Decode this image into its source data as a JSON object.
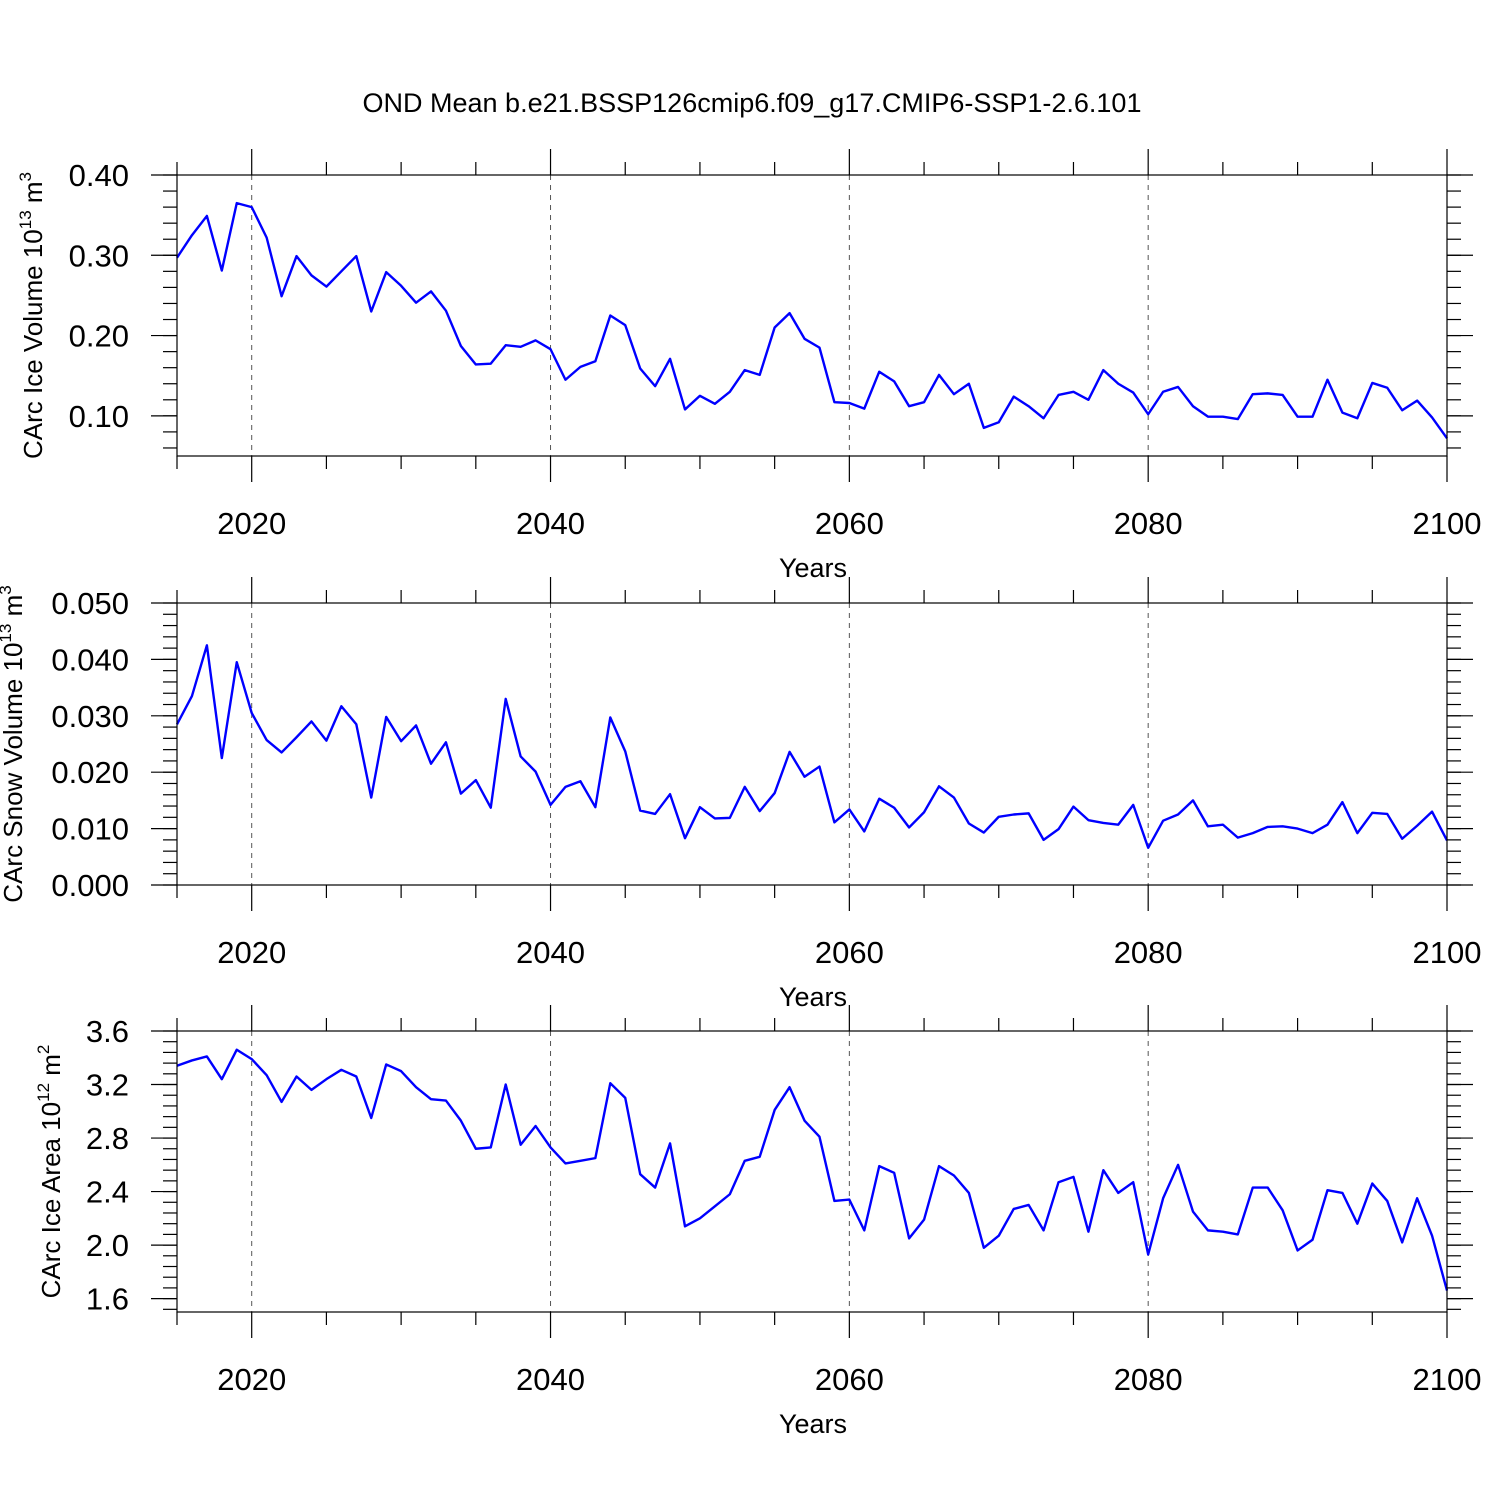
{
  "figure_title": "OND Mean b.e21.BSSP126cmip6.f09_g17.CMIP6-SSP1-2.6.101",
  "colors": {
    "series": "#0000ff",
    "axes": "#000000",
    "grid": "#555555"
  },
  "chart_data": [
    {
      "type": "line",
      "xlabel": "Years",
      "ylabel": "CArc Ice Volume 10",
      "ylabel_sup": "13",
      "ylabel_unit": "m",
      "ylabel_unit_sup": "3",
      "xlim": [
        2015,
        2100
      ],
      "ylim": [
        0.05,
        0.4
      ],
      "xticks": [
        2020,
        2040,
        2060,
        2080,
        2100
      ],
      "xtick_labels": [
        "2020",
        "2040",
        "2060",
        "2080",
        "2100"
      ],
      "yticks": [
        0.1,
        0.2,
        0.3,
        0.4
      ],
      "ytick_labels": [
        "0.10",
        "0.20",
        "0.30",
        "0.40"
      ],
      "y_minor_step": 0.02,
      "grid": "vertical dashed at major x ticks",
      "series": [
        {
          "x_start": 2015,
          "x_step": 1,
          "values": [
            0.297,
            0.325,
            0.349,
            0.281,
            0.365,
            0.36,
            0.322,
            0.249,
            0.299,
            0.275,
            0.261,
            0.28,
            0.299,
            0.23,
            0.279,
            0.262,
            0.241,
            0.255,
            0.231,
            0.187,
            0.164,
            0.165,
            0.188,
            0.186,
            0.194,
            0.183,
            0.145,
            0.161,
            0.168,
            0.225,
            0.213,
            0.159,
            0.137,
            0.171,
            0.108,
            0.125,
            0.115,
            0.13,
            0.157,
            0.151,
            0.21,
            0.228,
            0.196,
            0.185,
            0.117,
            0.116,
            0.109,
            0.155,
            0.143,
            0.112,
            0.117,
            0.151,
            0.127,
            0.14,
            0.085,
            0.092,
            0.124,
            0.112,
            0.097,
            0.126,
            0.13,
            0.12,
            0.157,
            0.14,
            0.129,
            0.102,
            0.13,
            0.136,
            0.112,
            0.099,
            0.099,
            0.096,
            0.127,
            0.128,
            0.126,
            0.099,
            0.099,
            0.145,
            0.104,
            0.097,
            0.141,
            0.135,
            0.107,
            0.119,
            0.098,
            0.072
          ]
        }
      ]
    },
    {
      "type": "line",
      "xlabel": "Years",
      "ylabel": "CArc Snow Volume 10",
      "ylabel_sup": "13",
      "ylabel_unit": "m",
      "ylabel_unit_sup": "3",
      "xlim": [
        2015,
        2100
      ],
      "ylim": [
        0.0,
        0.05
      ],
      "xticks": [
        2020,
        2040,
        2060,
        2080,
        2100
      ],
      "xtick_labels": [
        "2020",
        "2040",
        "2060",
        "2080",
        "2100"
      ],
      "yticks": [
        0.0,
        0.01,
        0.02,
        0.03,
        0.04,
        0.05
      ],
      "ytick_labels": [
        "0.000",
        "0.010",
        "0.020",
        "0.030",
        "0.040",
        "0.050"
      ],
      "y_minor_step": 0.002,
      "grid": "vertical dashed at major x ticks",
      "series": [
        {
          "x_start": 2015,
          "x_step": 1,
          "values": [
            0.0285,
            0.0335,
            0.0425,
            0.0225,
            0.0395,
            0.0305,
            0.0257,
            0.0235,
            0.0262,
            0.029,
            0.0256,
            0.0317,
            0.0285,
            0.0155,
            0.0298,
            0.0255,
            0.0283,
            0.0215,
            0.0253,
            0.0162,
            0.0186,
            0.0137,
            0.033,
            0.0228,
            0.0201,
            0.0142,
            0.0174,
            0.0184,
            0.0138,
            0.0297,
            0.0237,
            0.0132,
            0.0126,
            0.0161,
            0.0083,
            0.0138,
            0.0118,
            0.0119,
            0.0174,
            0.0131,
            0.0163,
            0.0236,
            0.0192,
            0.021,
            0.0111,
            0.0134,
            0.0095,
            0.0153,
            0.0137,
            0.0102,
            0.0129,
            0.0175,
            0.0155,
            0.0109,
            0.0093,
            0.0121,
            0.0125,
            0.0127,
            0.008,
            0.0099,
            0.0139,
            0.0115,
            0.011,
            0.0107,
            0.0142,
            0.0066,
            0.0114,
            0.0125,
            0.015,
            0.0104,
            0.0107,
            0.0084,
            0.0092,
            0.0103,
            0.0104,
            0.01,
            0.0092,
            0.0107,
            0.0147,
            0.0092,
            0.0128,
            0.0126,
            0.0082,
            0.0105,
            0.013,
            0.0079
          ]
        }
      ]
    },
    {
      "type": "line",
      "xlabel": "Years",
      "ylabel": "CArc Ice Area 10",
      "ylabel_sup": "12",
      "ylabel_unit": "m",
      "ylabel_unit_sup": "2",
      "xlim": [
        2015,
        2100
      ],
      "ylim": [
        1.5,
        3.6
      ],
      "xticks": [
        2020,
        2040,
        2060,
        2080,
        2100
      ],
      "xtick_labels": [
        "2020",
        "2040",
        "2060",
        "2080",
        "2100"
      ],
      "yticks": [
        1.6,
        2.0,
        2.4,
        2.8,
        3.2,
        3.6
      ],
      "ytick_labels": [
        "1.6",
        "2.0",
        "2.4",
        "2.8",
        "3.2",
        "3.6"
      ],
      "y_minor_step": 0.08,
      "grid": "vertical dashed at major x ticks",
      "series": [
        {
          "x_start": 2015,
          "x_step": 1,
          "values": [
            3.34,
            3.38,
            3.41,
            3.24,
            3.46,
            3.39,
            3.27,
            3.07,
            3.26,
            3.16,
            3.24,
            3.31,
            3.26,
            2.95,
            3.35,
            3.3,
            3.18,
            3.09,
            3.08,
            2.93,
            2.72,
            2.73,
            3.2,
            2.75,
            2.89,
            2.73,
            2.61,
            2.63,
            2.65,
            3.21,
            3.1,
            2.53,
            2.43,
            2.76,
            2.14,
            2.2,
            2.29,
            2.38,
            2.63,
            2.66,
            3.01,
            3.18,
            2.93,
            2.81,
            2.33,
            2.34,
            2.11,
            2.59,
            2.54,
            2.05,
            2.19,
            2.59,
            2.52,
            2.39,
            1.98,
            2.07,
            2.27,
            2.3,
            2.11,
            2.47,
            2.51,
            2.1,
            2.56,
            2.39,
            2.47,
            1.93,
            2.35,
            2.6,
            2.25,
            2.11,
            2.1,
            2.08,
            2.43,
            2.43,
            2.26,
            1.96,
            2.04,
            2.41,
            2.39,
            2.16,
            2.46,
            2.33,
            2.02,
            2.35,
            2.07,
            1.66
          ]
        }
      ]
    }
  ]
}
